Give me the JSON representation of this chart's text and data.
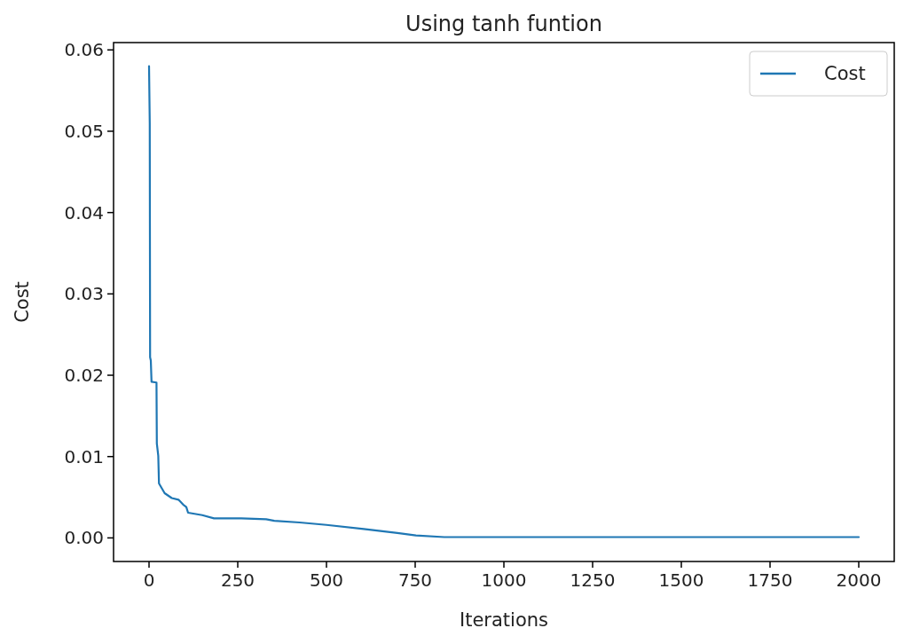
{
  "chart_data": {
    "type": "line",
    "title": "Using tanh funtion",
    "xlabel": "Iterations",
    "ylabel": "Cost",
    "xlim": [
      -100,
      2100
    ],
    "ylim": [
      -0.0029,
      0.0609
    ],
    "xticks": [
      0,
      250,
      500,
      750,
      1000,
      1250,
      1500,
      1750,
      2000
    ],
    "yticks": [
      {
        "value": 0,
        "label": "0.00"
      },
      {
        "value": 0.01,
        "label": "0.01"
      },
      {
        "value": 0.02,
        "label": "0.02"
      },
      {
        "value": 0.03,
        "label": "0.03"
      },
      {
        "value": 0.04,
        "label": "0.04"
      },
      {
        "value": 0.05,
        "label": "0.05"
      },
      {
        "value": 0.06,
        "label": "0.06"
      }
    ],
    "legend": "top right",
    "grid": false,
    "series": [
      {
        "name": "Cost",
        "color": "#1f77b4",
        "x": [
          0,
          2,
          3,
          5,
          7,
          21,
          22,
          26,
          28,
          44,
          64,
          83,
          96,
          105,
          110,
          150,
          183,
          260,
          330,
          353,
          424,
          500,
          605,
          700,
          752,
          832,
          1000,
          1500,
          2000
        ],
        "values": [
          0.058,
          0.051,
          0.0222,
          0.0218,
          0.0192,
          0.0191,
          0.0116,
          0.0101,
          0.0067,
          0.0055,
          0.0049,
          0.0047,
          0.0041,
          0.0038,
          0.0031,
          0.0028,
          0.0024,
          0.0024,
          0.0023,
          0.0021,
          0.0019,
          0.0016,
          0.0011,
          0.0006,
          0.0003,
          0.0001,
          0.0001,
          0.0001,
          0.0001
        ]
      }
    ]
  }
}
